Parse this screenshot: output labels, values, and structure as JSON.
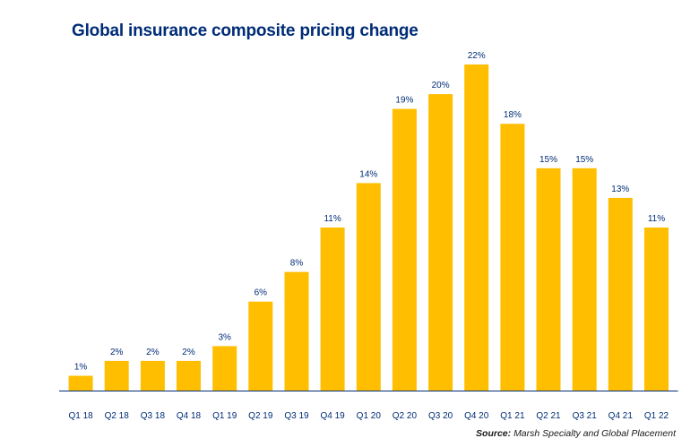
{
  "title": "Global insurance composite pricing change",
  "source": {
    "label": "Source:",
    "text": "Marsh Specialty and Global Placement"
  },
  "colors": {
    "bar": "#ffbe00",
    "title": "#002c77",
    "label": "#002c77",
    "axis": "#002c77"
  },
  "chart_data": {
    "type": "bar",
    "title": "Global insurance composite pricing change",
    "xlabel": "",
    "ylabel": "",
    "ylim": [
      0,
      22
    ],
    "grid": false,
    "unit": "%",
    "categories": [
      "Q1 18",
      "Q2 18",
      "Q3 18",
      "Q4 18",
      "Q1 19",
      "Q2 19",
      "Q3 19",
      "Q4 19",
      "Q1 20",
      "Q2 20",
      "Q3 20",
      "Q4 20",
      "Q1 21",
      "Q2 21",
      "Q3 21",
      "Q4 21",
      "Q1 22"
    ],
    "values": [
      1,
      2,
      2,
      2,
      3,
      6,
      8,
      11,
      14,
      19,
      20,
      22,
      18,
      15,
      15,
      13,
      11
    ],
    "data_labels": [
      "1%",
      "2%",
      "2%",
      "2%",
      "3%",
      "6%",
      "8%",
      "11%",
      "14%",
      "19%",
      "20%",
      "22%",
      "18%",
      "15%",
      "15%",
      "13%",
      "11%"
    ]
  }
}
